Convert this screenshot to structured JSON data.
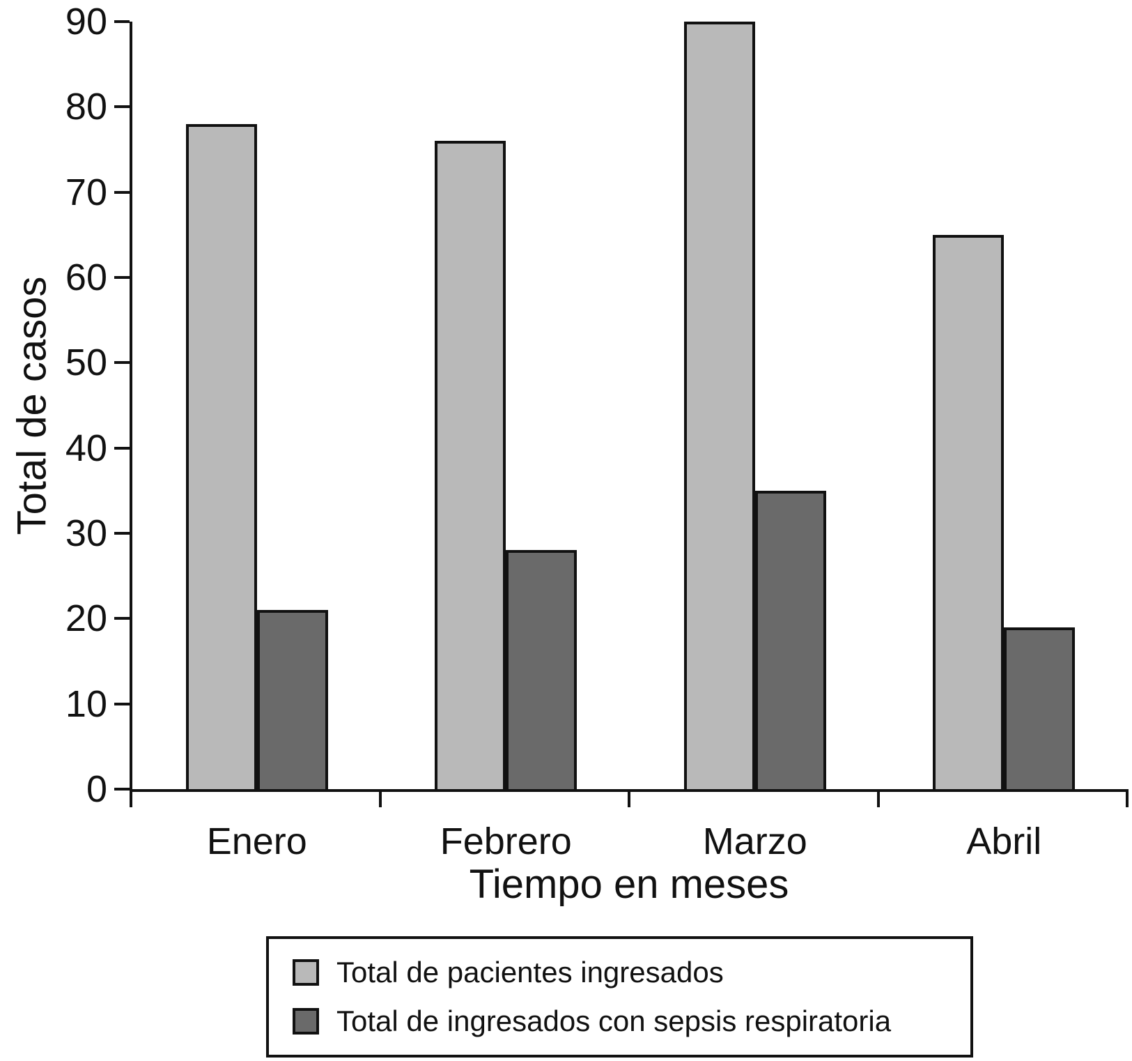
{
  "chart_data": {
    "type": "bar",
    "categories": [
      "Enero",
      "Febrero",
      "Marzo",
      "Abril"
    ],
    "series": [
      {
        "name": "Total de pacientes ingresados",
        "color": "#b9b9b9",
        "values": [
          78,
          76,
          90,
          65
        ]
      },
      {
        "name": "Total de ingresados con sepsis respiratoria",
        "color": "#6a6a6a",
        "values": [
          21,
          28,
          35,
          19
        ]
      }
    ],
    "title": "",
    "xlabel": "Tiempo en meses",
    "ylabel": "Total de casos",
    "ylim": [
      0,
      90
    ],
    "yticks": [
      0,
      10,
      20,
      30,
      40,
      50,
      60,
      70,
      80,
      90
    ],
    "grid": false,
    "legend_position": "bottom-box",
    "bar_outline_color": "#111111",
    "axis_color": "#111111",
    "background_color": "#ffffff"
  }
}
